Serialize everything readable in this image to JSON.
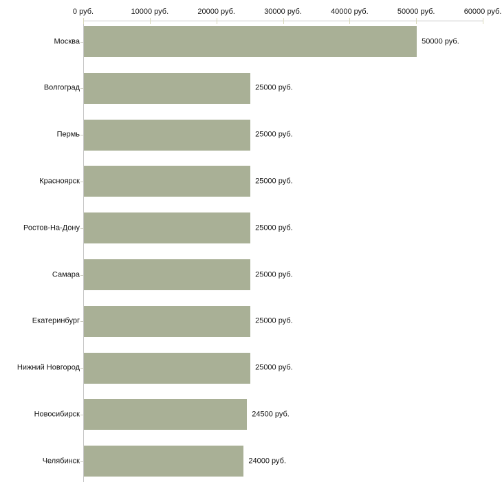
{
  "chart_data": {
    "type": "bar",
    "orientation": "horizontal",
    "title": "",
    "categories": [
      "Москва",
      "Волгоград",
      "Пермь",
      "Красноярск",
      "Ростов-На-Дону",
      "Самара",
      "Екатеринбург",
      "Нижний Новгород",
      "Новосибирск",
      "Челябинск"
    ],
    "values": [
      50000,
      25000,
      25000,
      25000,
      25000,
      25000,
      25000,
      25000,
      24500,
      24000
    ],
    "value_labels": [
      "50000 руб.",
      "25000 руб.",
      "25000 руб.",
      "25000 руб.",
      "25000 руб.",
      "25000 руб.",
      "25000 руб.",
      "25000 руб.",
      "24500 руб.",
      "24000 руб."
    ],
    "unit": "руб.",
    "x_axis": {
      "position": "top",
      "min": 0,
      "max": 60000,
      "ticks": [
        0,
        10000,
        20000,
        30000,
        40000,
        50000,
        60000
      ],
      "tick_labels": [
        "0 руб.",
        "10000 руб.",
        "20000 руб.",
        "30000 руб.",
        "40000 руб.",
        "50000 руб.",
        "60000 руб."
      ]
    },
    "legend": false,
    "grid": false,
    "colors": {
      "bar": "#a9b096",
      "axis_line": "#c6c6c6",
      "x_tick": "#d9d9bb",
      "y_tick": "#c9c9bd",
      "text": "#111111",
      "background": "#ffffff"
    }
  }
}
